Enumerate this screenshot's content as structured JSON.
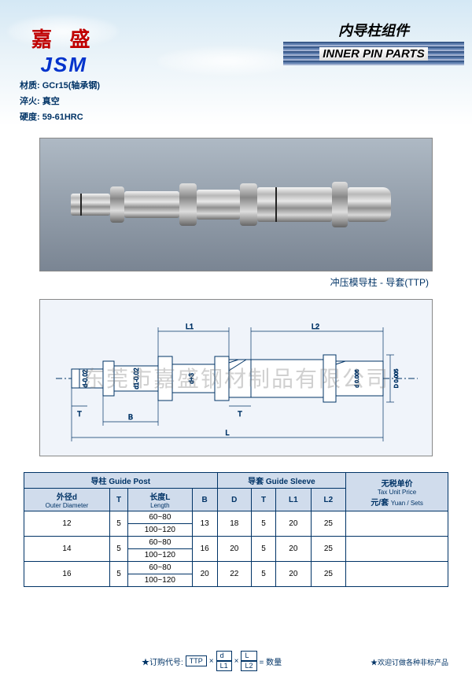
{
  "brand": {
    "name_cn": "嘉 盛",
    "name_en": "JSM",
    "color_cn": "#c00000",
    "color_en": "#0033cc"
  },
  "specs": {
    "material_label": "材质:",
    "material_value": "GCr15(轴承钢)",
    "quench_label": "淬火:",
    "quench_value": "真空",
    "hardness_label": "硬度:",
    "hardness_value": "59-61HRC"
  },
  "title": {
    "cn": "内导柱组件",
    "en": "INNER PIN PARTS"
  },
  "photo": {
    "caption": "冲压模导柱 - 导套(TTP)",
    "bg_gradient_top": "#aeb9c4",
    "bg_gradient_bot": "#7a8593"
  },
  "diagram": {
    "labels": {
      "L": "L",
      "L1": "L1",
      "L2": "L2",
      "B": "B",
      "T": "T",
      "d": "d-0.02",
      "d1": "d1-0.02",
      "d3": "d+3",
      "D_inner": "d 0.006",
      "D_outer": "D 0.005"
    },
    "bg": "#f0f4fa"
  },
  "watermark": "东莞市嘉盛钢材制品有限公司",
  "table": {
    "groups": {
      "guide_post": {
        "cn": "导柱",
        "en": "Guide Post"
      },
      "guide_sleeve": {
        "cn": "导套",
        "en": "Guide Sleeve"
      },
      "price": {
        "cn": "无税单价",
        "en": "Tax Unit Price",
        "unit_cn": "元/套",
        "unit_en": "Yuan / Sets"
      }
    },
    "cols": {
      "d": {
        "cn": "外径d",
        "en": "Outer Diameter"
      },
      "T": "T",
      "L": {
        "cn": "长度L",
        "en": "Length"
      },
      "B": "B",
      "D": "D",
      "T2": "T",
      "L1": "L1",
      "L2": "L2"
    },
    "rows": [
      {
        "d": "12",
        "T": "5",
        "L": [
          "60~80",
          "100~120"
        ],
        "B": "13",
        "D": "18",
        "T2": "5",
        "L1": "20",
        "L2": "25",
        "price": ""
      },
      {
        "d": "14",
        "T": "5",
        "L": [
          "60~80",
          "100~120"
        ],
        "B": "16",
        "D": "20",
        "T2": "5",
        "L1": "20",
        "L2": "25",
        "price": ""
      },
      {
        "d": "16",
        "T": "5",
        "L": [
          "60~80",
          "100~120"
        ],
        "B": "20",
        "D": "22",
        "T2": "5",
        "L1": "20",
        "L2": "25",
        "price": ""
      }
    ],
    "header_bg": "#d0dcec",
    "border_color": "#003366"
  },
  "footer": {
    "order_label": "★订购代号:",
    "order_parts": {
      "ttp": "TTP",
      "d": "d",
      "L": "L",
      "L1": "L1",
      "L2": "L2",
      "qty": "= 数量"
    },
    "note": "★欢迎订做各种非标产品"
  }
}
